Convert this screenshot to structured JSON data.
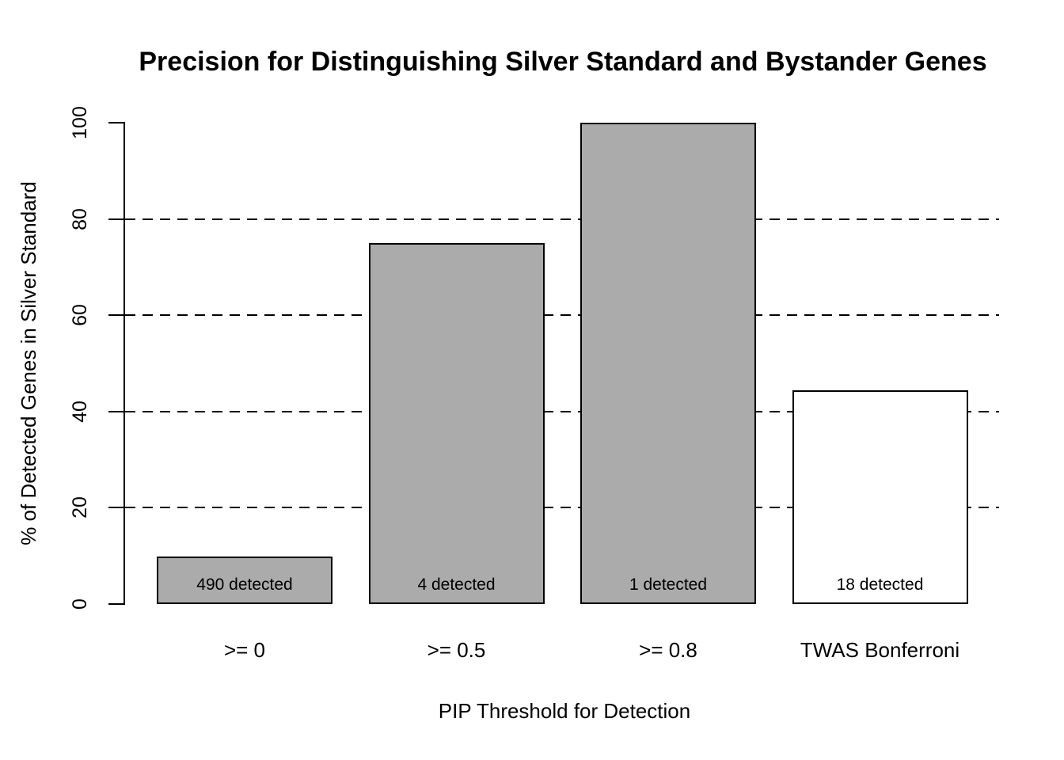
{
  "chart_data": {
    "type": "bar",
    "title": "Precision for Distinguishing Silver Standard and Bystander Genes",
    "xlabel": "PIP Threshold for Detection",
    "ylabel": "% of Detected Genes in Silver Standard",
    "categories": [
      ">= 0",
      ">= 0.5",
      ">= 0.8",
      "TWAS Bonferroni"
    ],
    "values": [
      9.8,
      75,
      100,
      44.4
    ],
    "bar_labels": [
      "490 detected",
      "4 detected",
      "1 detected",
      "18 detected"
    ],
    "bar_fill_colors": [
      "#ababab",
      "#ababab",
      "#ababab",
      "#ffffff"
    ],
    "bar_border_color": "#000000",
    "yticks": [
      "0",
      "20",
      "40",
      "60",
      "80",
      "100"
    ],
    "ytick_values": [
      0,
      20,
      40,
      60,
      80,
      100
    ],
    "gridline_values": [
      20,
      40,
      60,
      80
    ],
    "gridline_style": "dashed",
    "grid": "horizontal dashed lines at 20/40/60/80, drawn behind bars",
    "ylim": [
      0,
      100
    ],
    "legend_position": "none"
  }
}
